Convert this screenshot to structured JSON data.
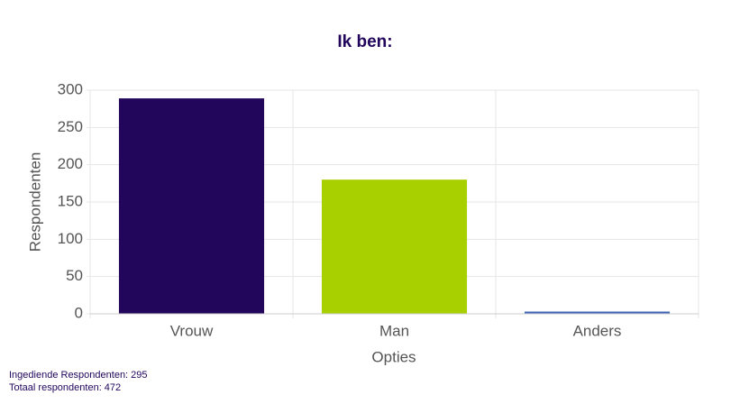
{
  "chart_data": {
    "type": "bar",
    "title": "Ik ben:",
    "categories": [
      "Vrouw",
      "Man",
      "Anders"
    ],
    "values": [
      289,
      180,
      3
    ],
    "colors": [
      "#22065c",
      "#a8d000",
      "#3f63b6"
    ],
    "x_label": "Opties",
    "y_label": "Respondenten",
    "ylim": [
      0,
      300
    ],
    "yticks": [
      0,
      50,
      100,
      150,
      200,
      250,
      300
    ],
    "grid": true,
    "footer": [
      "Ingediende Respondenten: 295",
      "Totaal respondenten: 472"
    ]
  }
}
